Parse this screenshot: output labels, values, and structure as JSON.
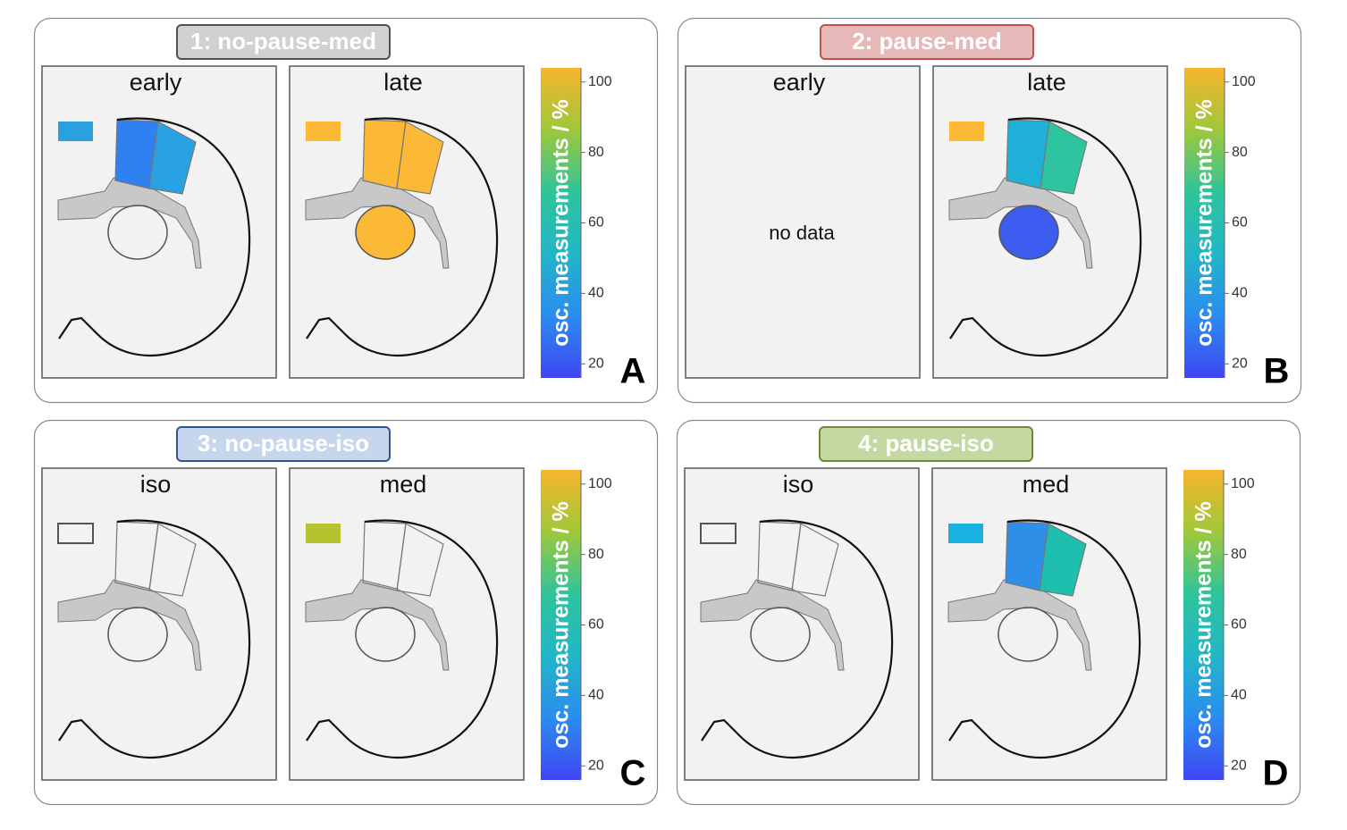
{
  "colorbar": {
    "label": "osc. measurements / %",
    "lim": [
      16,
      104
    ],
    "ticks": [
      20,
      40,
      60,
      80,
      100
    ],
    "colors": [
      "#3f46f2",
      "#2a8cf0",
      "#22b6c8",
      "#2ec49a",
      "#9fc83a",
      "#f7b52c"
    ]
  },
  "panels": [
    {
      "title": "1: no-pause-med",
      "letter": "A",
      "badge_fill": "#d0d0d0",
      "badge_border": "#505050",
      "views": [
        {
          "label": "early",
          "regions": {
            "rect": "#2aa0e0",
            "area1": "#2f80f0",
            "area2": "#28a2e2",
            "core": null
          }
        },
        {
          "label": "late",
          "regions": {
            "rect": "#fbb935",
            "area1": "#fbb935",
            "area2": "#fbb935",
            "core": "#fbb935"
          }
        }
      ]
    },
    {
      "title": "2: pause-med",
      "letter": "B",
      "badge_fill": "#e6b9b8",
      "badge_border": "#c0504d",
      "views": [
        {
          "label": "early",
          "note": "no data"
        },
        {
          "label": "late",
          "regions": {
            "rect": "#fbb935",
            "area1": "#1fb0d8",
            "area2": "#2ec4a0",
            "core": "#3c5cf0"
          }
        }
      ]
    },
    {
      "title": "3: no-pause-iso",
      "letter": "C",
      "badge_fill": "#c6d6ec",
      "badge_border": "#2f5597",
      "views": [
        {
          "label": "iso",
          "regions": {
            "rect": null,
            "area1": null,
            "area2": null,
            "core": null
          }
        },
        {
          "label": "med",
          "regions": {
            "rect": "#b5c42e",
            "area1": null,
            "area2": null,
            "core": null
          }
        }
      ]
    },
    {
      "title": "4: pause-iso",
      "letter": "D",
      "badge_fill": "#c4d9a2",
      "badge_border": "#70883a",
      "views": [
        {
          "label": "iso",
          "regions": {
            "rect": null,
            "area1": null,
            "area2": null,
            "core": null
          }
        },
        {
          "label": "med",
          "regions": {
            "rect": "#1ab0e0",
            "area1": "#2e8ee8",
            "area2": "#1fbfb0",
            "core": null
          }
        }
      ]
    }
  ]
}
